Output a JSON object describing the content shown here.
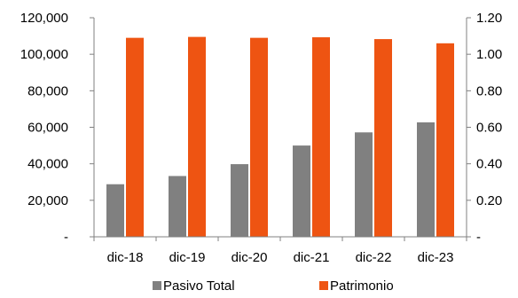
{
  "chart_data": {
    "type": "bar",
    "categories": [
      "dic-18",
      "dic-19",
      "dic-20",
      "dic-21",
      "dic-22",
      "dic-23"
    ],
    "series": [
      {
        "name": "Pasivo Total",
        "axis": "left",
        "color": "#808080",
        "values": [
          28800,
          33300,
          39800,
          50000,
          57200,
          62700
        ]
      },
      {
        "name": "Patrimonio",
        "axis": "right",
        "color": "#EE5412",
        "values": [
          1.09,
          1.095,
          1.09,
          1.093,
          1.083,
          1.06
        ]
      }
    ],
    "y_left": {
      "ylim": [
        0,
        120000
      ],
      "ticks": [
        0,
        20000,
        40000,
        60000,
        80000,
        100000,
        120000
      ],
      "tick_labels": [
        "-",
        "20,000",
        "40,000",
        "60,000",
        "80,000",
        "100,000",
        "120,000"
      ]
    },
    "y_right": {
      "ylim": [
        0,
        1.2
      ],
      "ticks": [
        0,
        0.2,
        0.4,
        0.6,
        0.8,
        1.0,
        1.2
      ],
      "tick_labels": [
        "-",
        "0.20",
        "0.40",
        "0.60",
        "0.80",
        "1.00",
        "1.20"
      ]
    },
    "title": "",
    "xlabel": "",
    "grid": false,
    "legend": "bottom"
  }
}
